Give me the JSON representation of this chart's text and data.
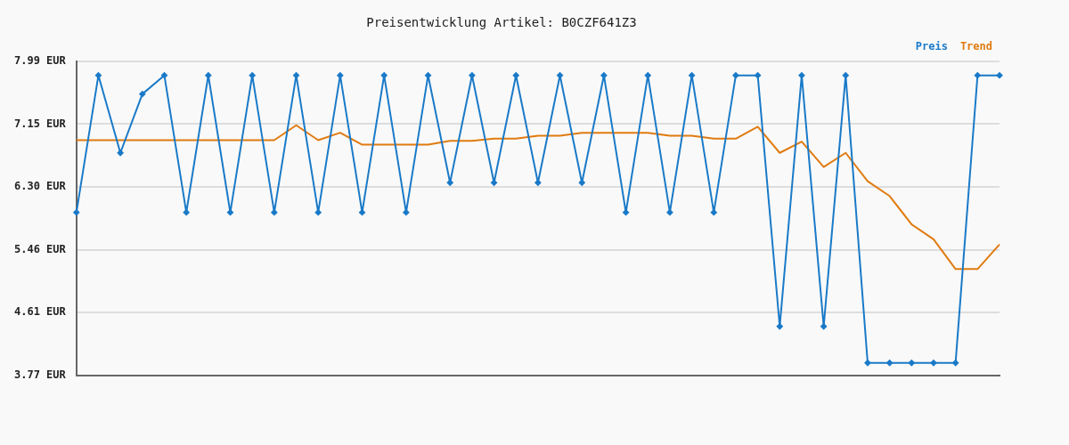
{
  "chart_data": {
    "type": "line",
    "title": "Preisentwicklung Artikel: B0CZF641Z3",
    "categories": [
      null,
      null,
      null,
      null,
      null,
      null,
      null,
      null,
      null,
      null,
      null,
      null,
      null,
      null,
      null,
      null,
      null,
      null,
      null,
      null,
      null,
      null,
      null,
      null,
      null,
      null,
      null,
      null,
      null,
      null,
      null,
      null,
      null,
      null,
      null,
      null,
      null,
      null,
      null,
      null,
      null,
      null,
      null
    ],
    "series": [
      {
        "name": "Preis",
        "color": "#1a7ac8",
        "marker": "diamond",
        "values": [
          5.96,
          7.8,
          6.76,
          7.55,
          7.8,
          5.96,
          7.8,
          5.96,
          7.8,
          5.96,
          7.8,
          5.96,
          7.8,
          5.96,
          7.8,
          5.96,
          7.8,
          6.36,
          7.8,
          6.36,
          7.8,
          6.36,
          7.8,
          6.36,
          7.8,
          5.96,
          7.8,
          5.96,
          7.8,
          5.96,
          7.8,
          7.8,
          4.43,
          7.8,
          4.43,
          7.8,
          3.94,
          3.94,
          3.94,
          3.94,
          3.94,
          7.8,
          7.8
        ]
      },
      {
        "name": "Trend",
        "color": "#e07b10",
        "marker": "none",
        "values": [
          6.93,
          6.93,
          6.93,
          6.93,
          6.93,
          6.93,
          6.93,
          6.93,
          6.93,
          6.93,
          7.13,
          6.93,
          7.03,
          6.87,
          6.87,
          6.87,
          6.87,
          6.92,
          6.92,
          6.95,
          6.95,
          6.99,
          6.99,
          7.03,
          7.03,
          7.03,
          7.03,
          6.99,
          6.99,
          6.95,
          6.95,
          7.11,
          6.76,
          6.91,
          6.57,
          6.76,
          6.38,
          6.18,
          5.8,
          5.6,
          5.2,
          5.2,
          5.53
        ]
      }
    ],
    "ylim": [
      3.77,
      7.99
    ],
    "yticks": [
      {
        "value": 3.77,
        "label": "3.77 EUR"
      },
      {
        "value": 4.614,
        "label": "4.61 EUR"
      },
      {
        "value": 5.458,
        "label": "5.46 EUR"
      },
      {
        "value": 6.302,
        "label": "6.30 EUR"
      },
      {
        "value": 7.146,
        "label": "7.15 EUR"
      },
      {
        "value": 7.99,
        "label": "7.99 EUR"
      }
    ],
    "grid": "y",
    "legend": "top right",
    "line_style": "solid"
  }
}
